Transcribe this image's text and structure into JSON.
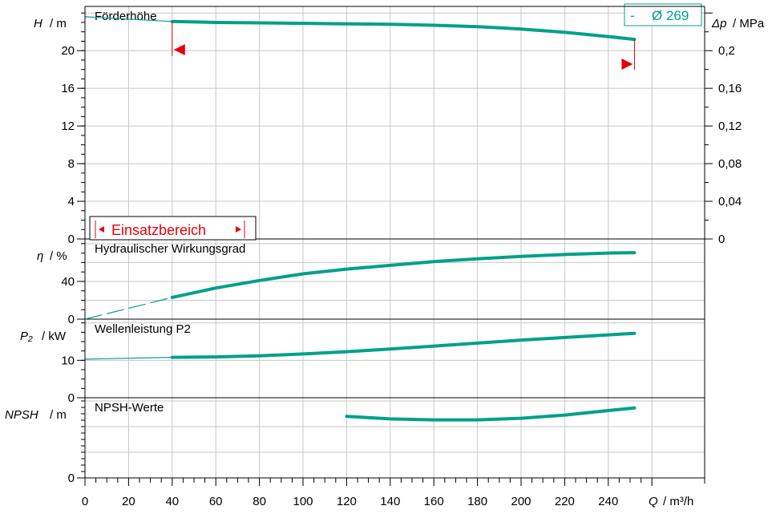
{
  "chart_data": {
    "type": "line",
    "x_axis": {
      "label_symbol": "Q",
      "label_unit": "/ m³/h",
      "range": [
        0,
        260
      ],
      "ticks": [
        "0",
        "20",
        "40",
        "60",
        "80",
        "100",
        "120",
        "140",
        "160",
        "180",
        "200",
        "220",
        "240"
      ]
    },
    "legend": {
      "dash": "-",
      "label": "Ø 269"
    },
    "colors": {
      "curve": "#00a08a",
      "range": "#e8000b",
      "grid": "#c8c8c8",
      "axis": "#000000"
    },
    "panels": [
      {
        "id": "head",
        "title": "Förderhöhe",
        "ylabel_symbol": "H",
        "ylabel_unit": "/ m",
        "ylim": [
          0,
          24
        ],
        "y_ticks": [
          "0",
          "4",
          "8",
          "12",
          "16",
          "20"
        ],
        "right_axis": {
          "label_symbol": "Δp",
          "label_unit": "/ MPa",
          "ylim": [
            0,
            0.24
          ],
          "ticks": [
            "0",
            "0,04",
            "0,08",
            "0,12",
            "0,16",
            "0,2"
          ]
        },
        "series": {
          "thin": [
            [
              0,
              23.6
            ],
            [
              40,
              23.1
            ]
          ],
          "thick": [
            [
              40,
              23.1
            ],
            [
              60,
              23.0
            ],
            [
              80,
              22.95
            ],
            [
              100,
              22.9
            ],
            [
              120,
              22.85
            ],
            [
              140,
              22.8
            ],
            [
              160,
              22.7
            ],
            [
              180,
              22.55
            ],
            [
              200,
              22.3
            ],
            [
              220,
              21.95
            ],
            [
              240,
              21.5
            ],
            [
              252,
              21.2
            ]
          ]
        },
        "operating_range": {
          "q_min": 40,
          "q_max": 252,
          "label": "Einsatzbereich"
        }
      },
      {
        "id": "efficiency",
        "title": "Hydraulischer Wirkungsgrad",
        "ylabel_symbol": "η",
        "ylabel_unit": "/ %",
        "ylim": [
          0,
          80
        ],
        "y_ticks": [
          "0",
          "40"
        ],
        "series": {
          "thin": [
            [
              0,
              0
            ],
            [
              40,
              23
            ]
          ],
          "thick": [
            [
              40,
              23
            ],
            [
              60,
              33
            ],
            [
              80,
              41
            ],
            [
              100,
              48
            ],
            [
              120,
              53
            ],
            [
              140,
              57
            ],
            [
              160,
              61
            ],
            [
              180,
              64
            ],
            [
              200,
              66.5
            ],
            [
              220,
              68.5
            ],
            [
              240,
              70
            ],
            [
              252,
              70.5
            ]
          ]
        }
      },
      {
        "id": "power",
        "title": "Wellenleistung P2",
        "ylabel_symbol": "P₂",
        "ylabel_unit": "/ kW",
        "ylim": [
          0,
          20
        ],
        "y_ticks": [
          "0",
          "10"
        ],
        "series": {
          "thin": [
            [
              0,
              10.3
            ],
            [
              40,
              10.8
            ]
          ],
          "thick": [
            [
              40,
              10.8
            ],
            [
              60,
              10.9
            ],
            [
              80,
              11.2
            ],
            [
              100,
              11.7
            ],
            [
              120,
              12.3
            ],
            [
              140,
              13.0
            ],
            [
              160,
              13.8
            ],
            [
              180,
              14.6
            ],
            [
              200,
              15.4
            ],
            [
              220,
              16.1
            ],
            [
              240,
              16.8
            ],
            [
              252,
              17.2
            ]
          ]
        }
      },
      {
        "id": "npsh",
        "title": "NPSH-Werte",
        "ylabel_symbol": "NPSH",
        "ylabel_unit": "/ m",
        "ylim": [
          0,
          12
        ],
        "y_ticks": [
          "0"
        ],
        "series": {
          "thin": [],
          "thick": [
            [
              120,
              9.6
            ],
            [
              140,
              9.2
            ],
            [
              160,
              9.05
            ],
            [
              180,
              9.05
            ],
            [
              200,
              9.3
            ],
            [
              220,
              9.8
            ],
            [
              240,
              10.5
            ],
            [
              252,
              10.9
            ]
          ]
        }
      }
    ]
  }
}
